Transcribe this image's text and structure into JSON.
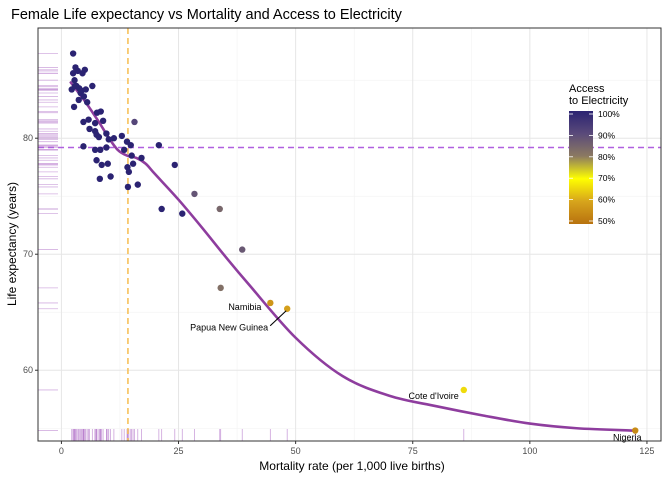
{
  "chart_data": {
    "type": "scatter",
    "title": "Female Life expectancy vs Mortality and Access to Electricity",
    "xlabel": "Mortality rate (per 1,000 live births)",
    "ylabel": "Life expectancy (years)",
    "xlim": [
      -5,
      128
    ],
    "ylim": [
      53.9,
      89.5
    ],
    "xticks": [
      0,
      25,
      50,
      75,
      100,
      125
    ],
    "yticks": [
      60,
      70,
      80
    ],
    "grid": true,
    "legend": {
      "title": "Access\nto Electricity",
      "labels": [
        "100%",
        "90%",
        "80%",
        "70%",
        "60%",
        "50%"
      ],
      "values": [
        100,
        90,
        80,
        70,
        60,
        50
      ],
      "placement": "right-inside"
    },
    "color_scale": {
      "stops": [
        {
          "value": 50,
          "color": "#b8720f"
        },
        {
          "value": 60,
          "color": "#d7a41c"
        },
        {
          "value": 70,
          "color": "#ffff00"
        },
        {
          "value": 80,
          "color": "#8c7a61"
        },
        {
          "value": 90,
          "color": "#5a4a7a"
        },
        {
          "value": 100,
          "color": "#2b2372"
        }
      ]
    },
    "reference_lines": {
      "vertical_x": 14.2,
      "vertical_color": "#f7c15a",
      "horizontal_y": 79.2,
      "horizontal_color": "#b060e0"
    },
    "trend_color": "#8e3d9e",
    "trend": [
      [
        2,
        84.8
      ],
      [
        5,
        83.2
      ],
      [
        8,
        81.4
      ],
      [
        10,
        80.1
      ],
      [
        12,
        79.0
      ],
      [
        14,
        78.5
      ],
      [
        16,
        78.3
      ],
      [
        18,
        77.8
      ],
      [
        20,
        76.9
      ],
      [
        25,
        74.7
      ],
      [
        30,
        72.3
      ],
      [
        35,
        69.8
      ],
      [
        40,
        67.4
      ],
      [
        50,
        62.8
      ],
      [
        60,
        59.5
      ],
      [
        70,
        57.8
      ],
      [
        80,
        56.9
      ],
      [
        90,
        56.1
      ],
      [
        100,
        55.4
      ],
      [
        110,
        55.0
      ],
      [
        122,
        54.8
      ]
    ],
    "points": [
      {
        "x": 2.5,
        "y": 87.3,
        "access": 100
      },
      {
        "x": 3.0,
        "y": 86.1,
        "access": 100
      },
      {
        "x": 2.5,
        "y": 85.6,
        "access": 100
      },
      {
        "x": 3.5,
        "y": 85.8,
        "access": 100
      },
      {
        "x": 4.5,
        "y": 85.6,
        "access": 100
      },
      {
        "x": 5.0,
        "y": 85.9,
        "access": 100
      },
      {
        "x": 2.8,
        "y": 85.0,
        "access": 100
      },
      {
        "x": 3.2,
        "y": 84.5,
        "access": 100
      },
      {
        "x": 2.2,
        "y": 84.2,
        "access": 100
      },
      {
        "x": 2.9,
        "y": 84.5,
        "access": 100
      },
      {
        "x": 3.8,
        "y": 84.3,
        "access": 100
      },
      {
        "x": 4.3,
        "y": 84.1,
        "access": 100
      },
      {
        "x": 5.2,
        "y": 84.2,
        "access": 100
      },
      {
        "x": 6.6,
        "y": 84.5,
        "access": 100
      },
      {
        "x": 4.1,
        "y": 83.9,
        "access": 100
      },
      {
        "x": 4.8,
        "y": 83.6,
        "access": 100
      },
      {
        "x": 3.7,
        "y": 83.3,
        "access": 100
      },
      {
        "x": 5.5,
        "y": 83.1,
        "access": 100
      },
      {
        "x": 2.7,
        "y": 82.7,
        "access": 100
      },
      {
        "x": 4.7,
        "y": 81.4,
        "access": 100
      },
      {
        "x": 7.6,
        "y": 82.2,
        "access": 100
      },
      {
        "x": 8.4,
        "y": 82.3,
        "access": 100
      },
      {
        "x": 7.2,
        "y": 81.3,
        "access": 100
      },
      {
        "x": 5.8,
        "y": 81.6,
        "access": 100
      },
      {
        "x": 8.9,
        "y": 81.5,
        "access": 100
      },
      {
        "x": 6.0,
        "y": 80.8,
        "access": 100
      },
      {
        "x": 7.2,
        "y": 80.6,
        "access": 100
      },
      {
        "x": 8.0,
        "y": 80.1,
        "access": 100
      },
      {
        "x": 7.5,
        "y": 80.3,
        "access": 100
      },
      {
        "x": 9.6,
        "y": 80.4,
        "access": 100
      },
      {
        "x": 10.1,
        "y": 79.9,
        "access": 100
      },
      {
        "x": 11.2,
        "y": 80.0,
        "access": 100
      },
      {
        "x": 12.9,
        "y": 80.2,
        "access": 100
      },
      {
        "x": 4.7,
        "y": 79.3,
        "access": 100
      },
      {
        "x": 8.3,
        "y": 79.0,
        "access": 100
      },
      {
        "x": 9.6,
        "y": 79.2,
        "access": 100
      },
      {
        "x": 14.0,
        "y": 79.7,
        "access": 100
      },
      {
        "x": 14.8,
        "y": 79.4,
        "access": 100
      },
      {
        "x": 20.8,
        "y": 79.4,
        "access": 100
      },
      {
        "x": 7.2,
        "y": 79.0,
        "access": 100
      },
      {
        "x": 7.5,
        "y": 78.1,
        "access": 100
      },
      {
        "x": 8.6,
        "y": 77.7,
        "access": 100
      },
      {
        "x": 9.9,
        "y": 77.8,
        "access": 100
      },
      {
        "x": 13.4,
        "y": 79.0,
        "access": 100
      },
      {
        "x": 15.0,
        "y": 78.5,
        "access": 100
      },
      {
        "x": 14.1,
        "y": 77.5,
        "access": 100
      },
      {
        "x": 15.3,
        "y": 77.8,
        "access": 100
      },
      {
        "x": 17.1,
        "y": 78.3,
        "access": 100
      },
      {
        "x": 14.4,
        "y": 77.1,
        "access": 100
      },
      {
        "x": 10.5,
        "y": 76.7,
        "access": 100
      },
      {
        "x": 8.2,
        "y": 76.5,
        "access": 100
      },
      {
        "x": 24.2,
        "y": 77.7,
        "access": 100
      },
      {
        "x": 14.2,
        "y": 75.8,
        "access": 100
      },
      {
        "x": 16.3,
        "y": 76.0,
        "access": 100
      },
      {
        "x": 21.4,
        "y": 73.9,
        "access": 100
      },
      {
        "x": 25.8,
        "y": 73.5,
        "access": 100
      },
      {
        "x": 15.6,
        "y": 81.4,
        "access": 91
      },
      {
        "x": 28.4,
        "y": 75.2,
        "access": 88
      },
      {
        "x": 33.8,
        "y": 73.9,
        "access": 84
      },
      {
        "x": 38.6,
        "y": 70.4,
        "access": 87
      },
      {
        "x": 34.0,
        "y": 67.1,
        "access": 82
      },
      {
        "x": 44.6,
        "y": 65.8,
        "access": 57
      },
      {
        "x": 48.2,
        "y": 65.3,
        "access": 59
      },
      {
        "x": 85.9,
        "y": 58.3,
        "access": 66
      },
      {
        "x": 122.5,
        "y": 54.8,
        "access": 55
      }
    ],
    "annotations": [
      {
        "text": "Namibia",
        "x": 44.6,
        "y": 65.8,
        "anchor": "end"
      },
      {
        "text": "Papua New Guinea",
        "x": 48.2,
        "y": 65.3,
        "anchor": "end",
        "leader": true
      },
      {
        "text": "Cote d'Ivoire",
        "x": 85.9,
        "y": 58.3,
        "anchor": "end"
      },
      {
        "text": "Nigeria",
        "x": 122.5,
        "y": 54.8,
        "anchor": "middle"
      }
    ]
  }
}
